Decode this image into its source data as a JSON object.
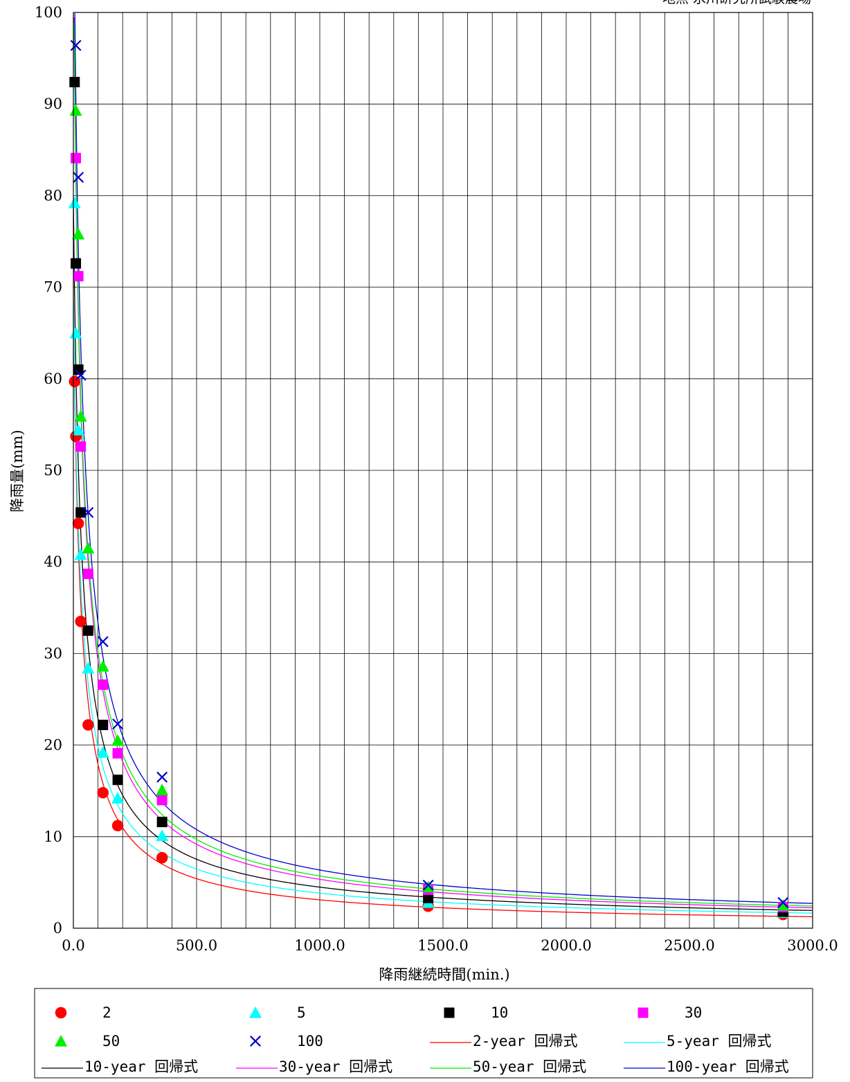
{
  "chart_data": {
    "type": "scatter",
    "title": "",
    "corner_note": "地点 氷川研究所試験農場",
    "xlabel": "降雨継続時間(min.)",
    "ylabel": "降雨量(mm)",
    "xlim": [
      0,
      3000
    ],
    "ylim": [
      0,
      100
    ],
    "x_ticks": [
      0,
      500,
      1000,
      1500,
      2000,
      2500,
      3000
    ],
    "x_tick_labels": [
      "0.0",
      "500.0",
      "1000.0",
      "1500.0",
      "2000.0",
      "2500.0",
      "3000.0"
    ],
    "y_ticks": [
      0,
      10,
      20,
      30,
      40,
      50,
      60,
      70,
      80,
      90,
      100
    ],
    "y_tick_labels": [
      "0",
      "10",
      "20",
      "30",
      "40",
      "50",
      "60",
      "70",
      "80",
      "90",
      "100"
    ],
    "x_minor_grid_step": 100,
    "grid": true,
    "legend_position": "bottom",
    "durations": [
      10,
      20,
      30,
      60,
      120,
      180,
      360,
      1440,
      2880
    ],
    "series": [
      {
        "name": "2",
        "marker": "circle",
        "color": "#ff0000",
        "points": [
          [
            5,
            59.7
          ],
          [
            10,
            53.7
          ],
          [
            20,
            44.2
          ],
          [
            30,
            33.5
          ],
          [
            60,
            22.2
          ],
          [
            120,
            14.8
          ],
          [
            180,
            11.2
          ],
          [
            360,
            7.7
          ],
          [
            1440,
            2.4
          ],
          [
            2880,
            1.5
          ]
        ]
      },
      {
        "name": "5",
        "marker": "triangle",
        "color": "#00ffff",
        "points": [
          [
            5,
            79.2
          ],
          [
            10,
            65.0
          ],
          [
            20,
            54.4
          ],
          [
            30,
            40.8
          ],
          [
            60,
            28.4
          ],
          [
            120,
            19.2
          ],
          [
            180,
            14.2
          ],
          [
            360,
            10.1
          ],
          [
            1440,
            2.8
          ],
          [
            2880,
            1.7
          ]
        ]
      },
      {
        "name": "10",
        "marker": "square",
        "color": "#000000",
        "points": [
          [
            5,
            92.4
          ],
          [
            10,
            72.6
          ],
          [
            20,
            61.0
          ],
          [
            30,
            45.4
          ],
          [
            60,
            32.5
          ],
          [
            120,
            22.2
          ],
          [
            180,
            16.2
          ],
          [
            360,
            11.6
          ],
          [
            1440,
            3.3
          ],
          [
            2880,
            1.8
          ]
        ]
      },
      {
        "name": "30",
        "marker": "square",
        "color": "#ff00ff",
        "points": [
          [
            10,
            84.1
          ],
          [
            20,
            71.2
          ],
          [
            30,
            52.6
          ],
          [
            60,
            38.7
          ],
          [
            120,
            26.6
          ],
          [
            180,
            19.1
          ],
          [
            360,
            14.0
          ],
          [
            1440,
            4.2
          ],
          [
            2880,
            2.3
          ]
        ]
      },
      {
        "name": "50",
        "marker": "triangle",
        "color": "#00ee00",
        "points": [
          [
            10,
            89.3
          ],
          [
            20,
            75.8
          ],
          [
            30,
            55.9
          ],
          [
            60,
            41.5
          ],
          [
            120,
            28.6
          ],
          [
            180,
            20.5
          ],
          [
            360,
            15.1
          ],
          [
            1440,
            4.5
          ],
          [
            2880,
            2.5
          ]
        ]
      },
      {
        "name": "100",
        "marker": "x",
        "color": "#0000cc",
        "points": [
          [
            10,
            96.4
          ],
          [
            20,
            82.0
          ],
          [
            30,
            60.4
          ],
          [
            60,
            45.4
          ],
          [
            120,
            31.3
          ],
          [
            180,
            22.3
          ],
          [
            360,
            16.5
          ],
          [
            1440,
            4.7
          ],
          [
            2880,
            2.8
          ]
        ]
      }
    ],
    "regression_curves": [
      {
        "name": "2-year 回帰式",
        "color": "#ff0000",
        "values_at_x": [
          [
            360,
            6.8
          ],
          [
            1440,
            2.3
          ],
          [
            2880,
            1.3
          ]
        ]
      },
      {
        "name": "5-year 回帰式",
        "color": "#00ffff",
        "values_at_x": [
          [
            360,
            8.6
          ],
          [
            1440,
            2.9
          ],
          [
            2880,
            1.7
          ]
        ]
      },
      {
        "name": "10-year 回帰式",
        "color": "#000000",
        "values_at_x": [
          [
            360,
            9.9
          ],
          [
            1440,
            3.4
          ],
          [
            2880,
            2.0
          ]
        ]
      },
      {
        "name": "30-year 回帰式",
        "color": "#ff00ff",
        "values_at_x": [
          [
            360,
            11.7
          ],
          [
            1440,
            4.0
          ],
          [
            2880,
            2.3
          ]
        ]
      },
      {
        "name": "50-year 回帰式",
        "color": "#00ee00",
        "values_at_x": [
          [
            360,
            12.6
          ],
          [
            1440,
            4.3
          ],
          [
            2880,
            2.5
          ]
        ]
      },
      {
        "name": "100-year 回帰式",
        "color": "#0000cc",
        "values_at_x": [
          [
            360,
            14.0
          ],
          [
            1440,
            4.8
          ],
          [
            2880,
            2.8
          ]
        ]
      }
    ]
  }
}
